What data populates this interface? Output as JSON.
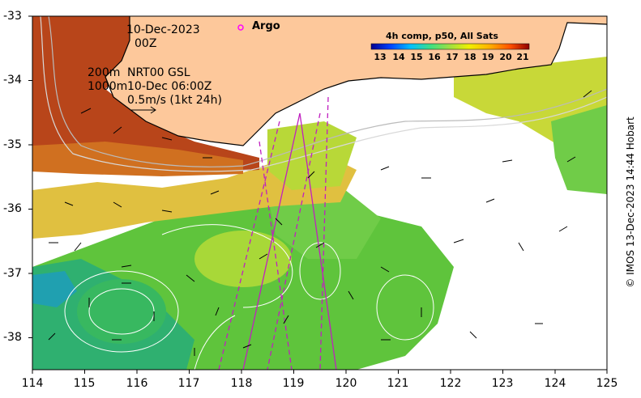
{
  "map": {
    "date_line1": "10-Dec-2023",
    "date_line2": "00Z",
    "depth_200": "200m",
    "depth_1000": "1000m",
    "product": "NRT00 GSL",
    "product_time": "10-Dec 06:00Z",
    "scale_vector": "0.5m/s (1kt 24h)",
    "argo_legend": "Argo",
    "colorbar_title": "4h comp, p50, All Sats",
    "colorbar_ticks": [
      "13",
      "14",
      "15",
      "16",
      "17",
      "18",
      "19",
      "20",
      "21"
    ],
    "x_ticks": [
      "114",
      "115",
      "116",
      "117",
      "118",
      "119",
      "120",
      "121",
      "122",
      "123",
      "124",
      "125"
    ],
    "y_ticks": [
      "-33",
      "-34",
      "-35",
      "-36",
      "-37",
      "-38"
    ],
    "credit": "© IMOS 13-Dec-2023 14:44 Hobart",
    "colors": {
      "land": "#fdc89b",
      "warm_sst": "#b8451a",
      "mid_sst": "#e7b838",
      "cool_sst": "#5fc43c",
      "cold_sst": "#20a87a",
      "track": "#c020c0",
      "argo": "#ff00ff"
    }
  }
}
